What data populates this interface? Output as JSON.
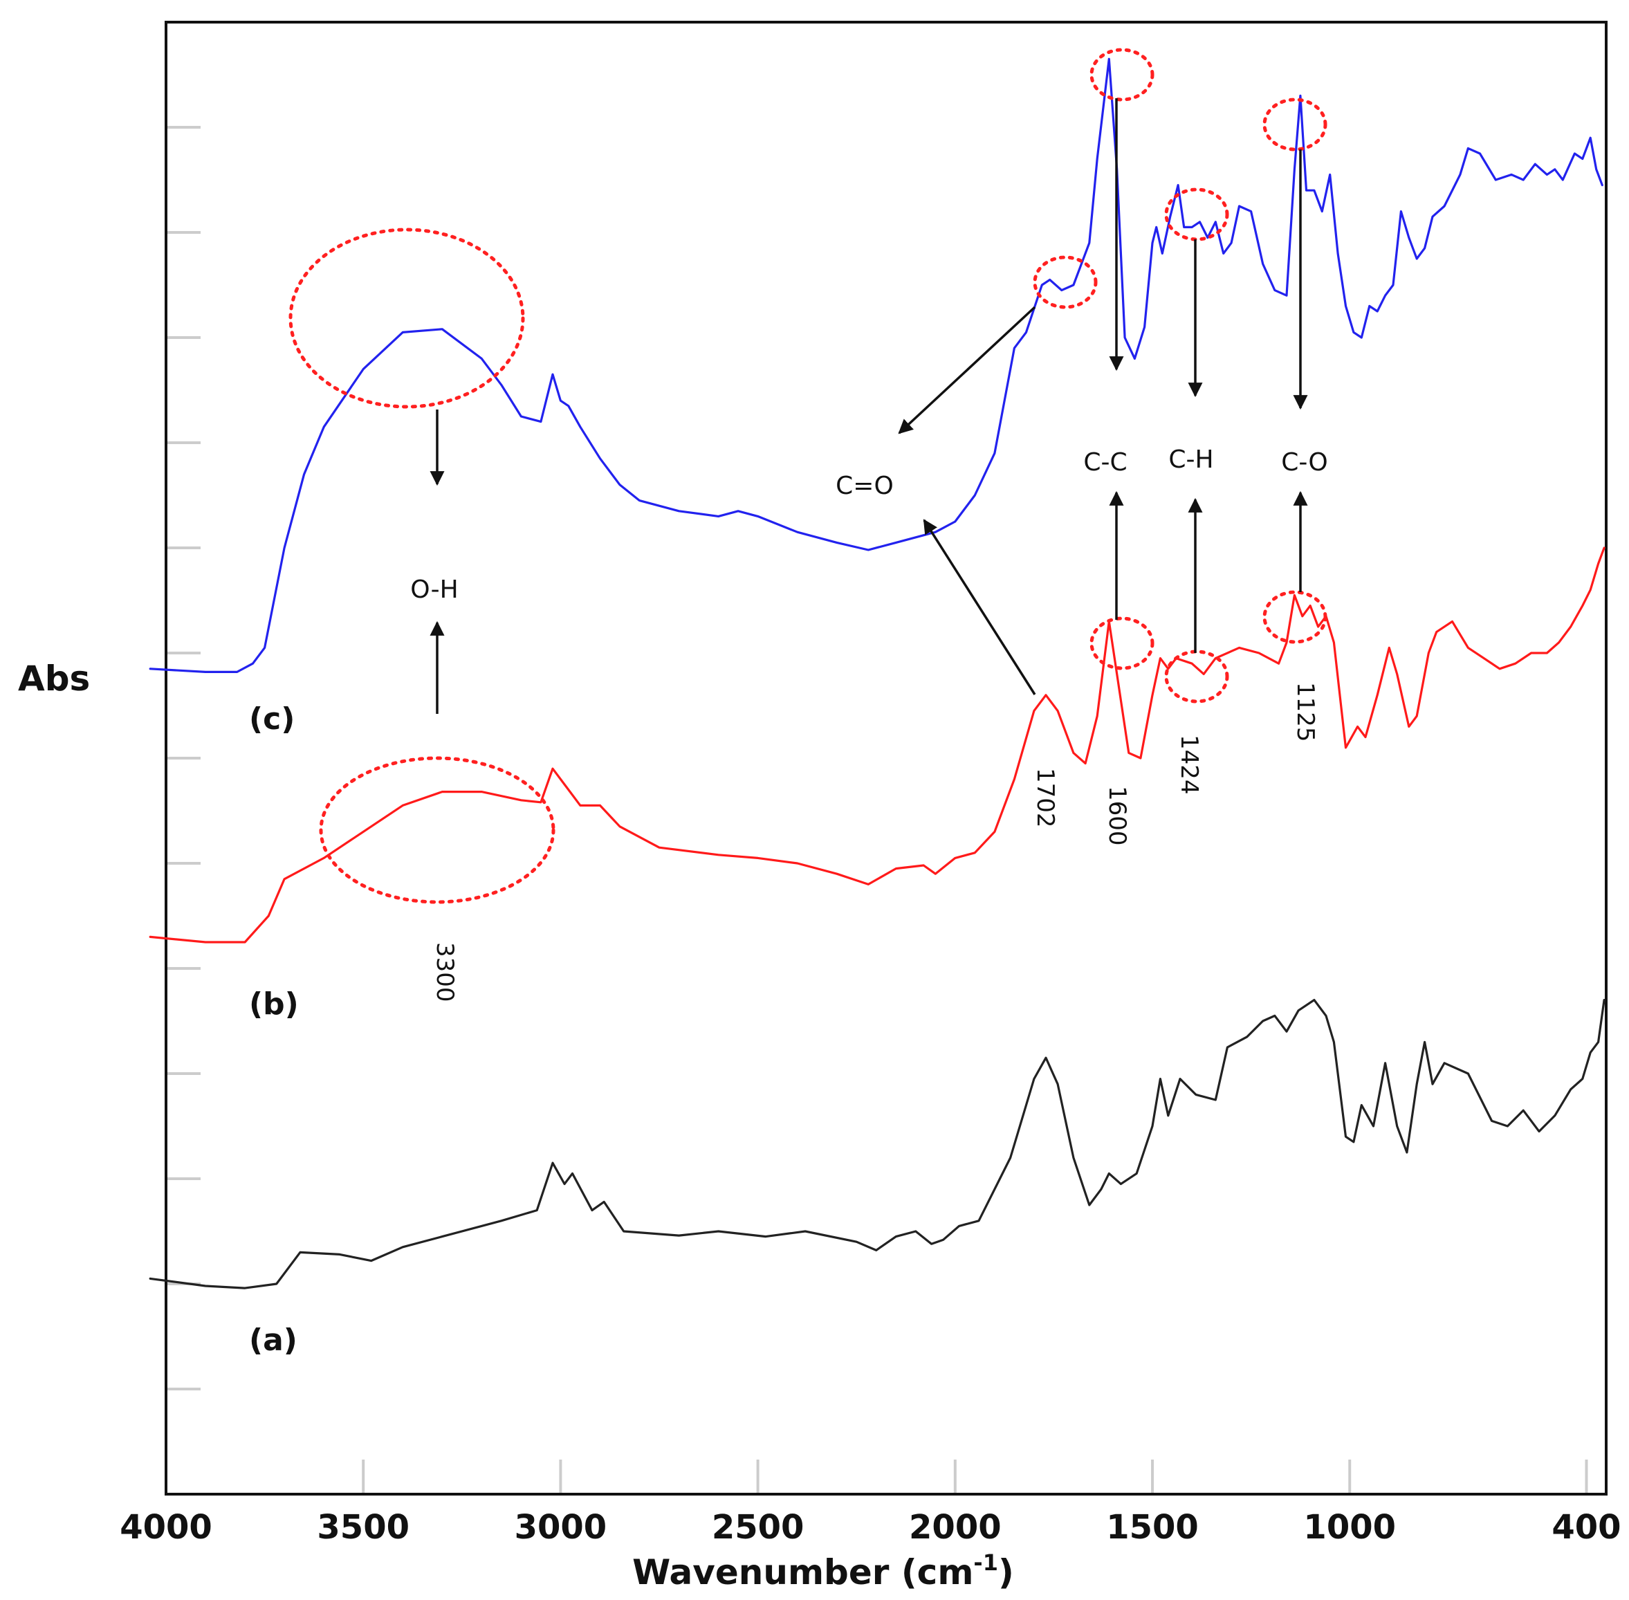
{
  "chart_data": {
    "type": "line",
    "title": "",
    "xlabel": "Wavenumber (cm",
    "xlabel_sup": "-1",
    "xlabel_close": ")",
    "ylabel": "Abs",
    "xlim": [
      4000,
      350
    ],
    "x_reversed": true,
    "xticks": [
      4000,
      3500,
      3000,
      2500,
      2000,
      1500,
      1000,
      400
    ],
    "xtick_labels": [
      "4000",
      "3500",
      "3000",
      "2500",
      "2000",
      "1500",
      "1000",
      "400"
    ],
    "ylim": [
      0,
      14
    ],
    "yticks": [
      1,
      2,
      3,
      4,
      5,
      6,
      7,
      8,
      9,
      10,
      11,
      12,
      13,
      14
    ],
    "series": [
      {
        "tag": "(a)",
        "color": "#222222",
        "points": [
          [
            4040,
            2.05
          ],
          [
            3900,
            1.98
          ],
          [
            3800,
            1.96
          ],
          [
            3720,
            2.0
          ],
          [
            3660,
            2.3
          ],
          [
            3560,
            2.28
          ],
          [
            3480,
            2.22
          ],
          [
            3400,
            2.35
          ],
          [
            3300,
            2.45
          ],
          [
            3150,
            2.6
          ],
          [
            3060,
            2.7
          ],
          [
            3020,
            3.15
          ],
          [
            2990,
            2.95
          ],
          [
            2970,
            3.05
          ],
          [
            2920,
            2.7
          ],
          [
            2890,
            2.78
          ],
          [
            2840,
            2.5
          ],
          [
            2700,
            2.46
          ],
          [
            2600,
            2.5
          ],
          [
            2480,
            2.45
          ],
          [
            2380,
            2.5
          ],
          [
            2250,
            2.4
          ],
          [
            2200,
            2.32
          ],
          [
            2150,
            2.45
          ],
          [
            2100,
            2.5
          ],
          [
            2060,
            2.38
          ],
          [
            2030,
            2.42
          ],
          [
            1990,
            2.55
          ],
          [
            1940,
            2.6
          ],
          [
            1860,
            3.2
          ],
          [
            1800,
            3.95
          ],
          [
            1770,
            4.15
          ],
          [
            1740,
            3.9
          ],
          [
            1700,
            3.2
          ],
          [
            1660,
            2.75
          ],
          [
            1630,
            2.9
          ],
          [
            1610,
            3.05
          ],
          [
            1580,
            2.95
          ],
          [
            1540,
            3.05
          ],
          [
            1500,
            3.5
          ],
          [
            1480,
            3.95
          ],
          [
            1460,
            3.6
          ],
          [
            1430,
            3.95
          ],
          [
            1390,
            3.8
          ],
          [
            1340,
            3.75
          ],
          [
            1310,
            4.25
          ],
          [
            1260,
            4.35
          ],
          [
            1220,
            4.5
          ],
          [
            1190,
            4.55
          ],
          [
            1160,
            4.4
          ],
          [
            1130,
            4.6
          ],
          [
            1090,
            4.7
          ],
          [
            1060,
            4.55
          ],
          [
            1040,
            4.3
          ],
          [
            1010,
            3.4
          ],
          [
            990,
            3.35
          ],
          [
            970,
            3.7
          ],
          [
            940,
            3.5
          ],
          [
            910,
            4.1
          ],
          [
            880,
            3.5
          ],
          [
            855,
            3.25
          ],
          [
            830,
            3.9
          ],
          [
            810,
            4.3
          ],
          [
            790,
            3.9
          ],
          [
            760,
            4.1
          ],
          [
            700,
            4.0
          ],
          [
            640,
            3.55
          ],
          [
            600,
            3.5
          ],
          [
            560,
            3.65
          ],
          [
            520,
            3.45
          ],
          [
            480,
            3.6
          ],
          [
            440,
            3.85
          ],
          [
            410,
            3.95
          ],
          [
            390,
            4.2
          ],
          [
            370,
            4.3
          ],
          [
            355,
            4.7
          ]
        ]
      },
      {
        "tag": "(b)",
        "color": "#ff1a1a",
        "points": [
          [
            4040,
            5.3
          ],
          [
            3900,
            5.25
          ],
          [
            3800,
            5.25
          ],
          [
            3740,
            5.5
          ],
          [
            3700,
            5.85
          ],
          [
            3600,
            6.05
          ],
          [
            3500,
            6.3
          ],
          [
            3400,
            6.55
          ],
          [
            3300,
            6.68
          ],
          [
            3200,
            6.68
          ],
          [
            3100,
            6.6
          ],
          [
            3050,
            6.58
          ],
          [
            3020,
            6.9
          ],
          [
            2990,
            6.75
          ],
          [
            2950,
            6.55
          ],
          [
            2900,
            6.55
          ],
          [
            2850,
            6.35
          ],
          [
            2750,
            6.15
          ],
          [
            2600,
            6.08
          ],
          [
            2500,
            6.05
          ],
          [
            2400,
            6.0
          ],
          [
            2300,
            5.9
          ],
          [
            2220,
            5.8
          ],
          [
            2150,
            5.95
          ],
          [
            2080,
            5.98
          ],
          [
            2050,
            5.9
          ],
          [
            2000,
            6.05
          ],
          [
            1950,
            6.1
          ],
          [
            1900,
            6.3
          ],
          [
            1850,
            6.8
          ],
          [
            1800,
            7.45
          ],
          [
            1770,
            7.6
          ],
          [
            1740,
            7.45
          ],
          [
            1700,
            7.05
          ],
          [
            1670,
            6.95
          ],
          [
            1640,
            7.4
          ],
          [
            1610,
            8.3
          ],
          [
            1590,
            7.8
          ],
          [
            1560,
            7.05
          ],
          [
            1530,
            7.0
          ],
          [
            1500,
            7.6
          ],
          [
            1480,
            7.95
          ],
          [
            1460,
            7.85
          ],
          [
            1440,
            7.95
          ],
          [
            1400,
            7.9
          ],
          [
            1370,
            7.8
          ],
          [
            1340,
            7.95
          ],
          [
            1280,
            8.05
          ],
          [
            1230,
            8.0
          ],
          [
            1180,
            7.9
          ],
          [
            1160,
            8.1
          ],
          [
            1140,
            8.55
          ],
          [
            1120,
            8.35
          ],
          [
            1100,
            8.45
          ],
          [
            1080,
            8.25
          ],
          [
            1060,
            8.35
          ],
          [
            1040,
            8.1
          ],
          [
            1010,
            7.1
          ],
          [
            980,
            7.3
          ],
          [
            960,
            7.2
          ],
          [
            930,
            7.6
          ],
          [
            900,
            8.05
          ],
          [
            880,
            7.8
          ],
          [
            850,
            7.3
          ],
          [
            830,
            7.4
          ],
          [
            800,
            8.0
          ],
          [
            780,
            8.2
          ],
          [
            740,
            8.3
          ],
          [
            700,
            8.05
          ],
          [
            660,
            7.95
          ],
          [
            620,
            7.85
          ],
          [
            580,
            7.9
          ],
          [
            540,
            8.0
          ],
          [
            500,
            8.0
          ],
          [
            470,
            8.1
          ],
          [
            440,
            8.25
          ],
          [
            410,
            8.45
          ],
          [
            390,
            8.6
          ],
          [
            370,
            8.85
          ],
          [
            355,
            9.0
          ]
        ]
      },
      {
        "tag": "(c)",
        "color": "#2222ee",
        "points": [
          [
            4040,
            7.85
          ],
          [
            3900,
            7.82
          ],
          [
            3820,
            7.82
          ],
          [
            3780,
            7.9
          ],
          [
            3750,
            8.05
          ],
          [
            3700,
            9.0
          ],
          [
            3650,
            9.7
          ],
          [
            3600,
            10.15
          ],
          [
            3500,
            10.7
          ],
          [
            3400,
            11.05
          ],
          [
            3300,
            11.08
          ],
          [
            3200,
            10.8
          ],
          [
            3150,
            10.55
          ],
          [
            3100,
            10.25
          ],
          [
            3050,
            10.2
          ],
          [
            3020,
            10.65
          ],
          [
            3000,
            10.4
          ],
          [
            2980,
            10.35
          ],
          [
            2950,
            10.15
          ],
          [
            2900,
            9.85
          ],
          [
            2850,
            9.6
          ],
          [
            2800,
            9.45
          ],
          [
            2700,
            9.35
          ],
          [
            2600,
            9.3
          ],
          [
            2550,
            9.35
          ],
          [
            2500,
            9.3
          ],
          [
            2400,
            9.15
          ],
          [
            2300,
            9.05
          ],
          [
            2220,
            8.98
          ],
          [
            2150,
            9.05
          ],
          [
            2050,
            9.15
          ],
          [
            2000,
            9.25
          ],
          [
            1950,
            9.5
          ],
          [
            1900,
            9.9
          ],
          [
            1850,
            10.9
          ],
          [
            1820,
            11.05
          ],
          [
            1780,
            11.5
          ],
          [
            1760,
            11.55
          ],
          [
            1730,
            11.45
          ],
          [
            1700,
            11.5
          ],
          [
            1660,
            11.9
          ],
          [
            1640,
            12.7
          ],
          [
            1610,
            13.65
          ],
          [
            1590,
            12.6
          ],
          [
            1570,
            11.0
          ],
          [
            1545,
            10.8
          ],
          [
            1520,
            11.1
          ],
          [
            1500,
            11.9
          ],
          [
            1490,
            12.05
          ],
          [
            1475,
            11.8
          ],
          [
            1455,
            12.15
          ],
          [
            1435,
            12.45
          ],
          [
            1420,
            12.05
          ],
          [
            1400,
            12.05
          ],
          [
            1380,
            12.1
          ],
          [
            1360,
            11.95
          ],
          [
            1340,
            12.1
          ],
          [
            1320,
            11.8
          ],
          [
            1300,
            11.9
          ],
          [
            1280,
            12.25
          ],
          [
            1250,
            12.2
          ],
          [
            1220,
            11.7
          ],
          [
            1190,
            11.45
          ],
          [
            1160,
            11.4
          ],
          [
            1140,
            12.6
          ],
          [
            1125,
            13.3
          ],
          [
            1110,
            12.4
          ],
          [
            1090,
            12.4
          ],
          [
            1070,
            12.2
          ],
          [
            1050,
            12.55
          ],
          [
            1030,
            11.8
          ],
          [
            1010,
            11.3
          ],
          [
            990,
            11.05
          ],
          [
            970,
            11.0
          ],
          [
            950,
            11.3
          ],
          [
            930,
            11.25
          ],
          [
            910,
            11.4
          ],
          [
            890,
            11.5
          ],
          [
            870,
            12.2
          ],
          [
            850,
            11.95
          ],
          [
            830,
            11.75
          ],
          [
            810,
            11.85
          ],
          [
            790,
            12.15
          ],
          [
            760,
            12.25
          ],
          [
            720,
            12.55
          ],
          [
            700,
            12.8
          ],
          [
            670,
            12.75
          ],
          [
            630,
            12.5
          ],
          [
            590,
            12.55
          ],
          [
            560,
            12.5
          ],
          [
            530,
            12.65
          ],
          [
            500,
            12.55
          ],
          [
            480,
            12.6
          ],
          [
            460,
            12.5
          ],
          [
            430,
            12.75
          ],
          [
            410,
            12.7
          ],
          [
            390,
            12.9
          ],
          [
            375,
            12.6
          ],
          [
            360,
            12.45
          ]
        ]
      }
    ],
    "bond_labels": [
      "O-H",
      "C=O",
      "C-C",
      "C-H",
      "C-O"
    ],
    "peak_labels": [
      "3300",
      "1702",
      "1600",
      "1424",
      "1125"
    ],
    "colors": {
      "axis": "#111111",
      "tick": "#cccccc",
      "highlight_circle": "#ff2020",
      "arrow": "#111111"
    }
  }
}
